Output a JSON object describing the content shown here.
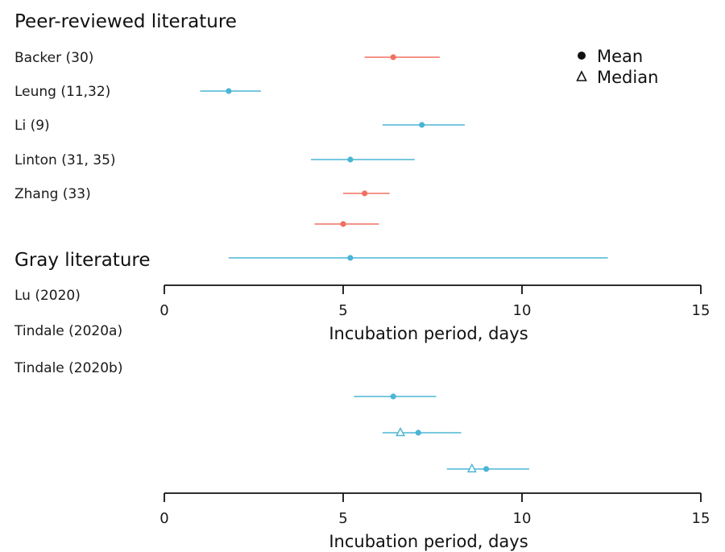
{
  "chart_data": {
    "type": "scatter",
    "subtype": "forest-plot",
    "colors": {
      "red": "#f07060",
      "blue": "#4bb5d4",
      "ink": "#111111"
    },
    "legend": {
      "placement": "top-right",
      "entries": [
        {
          "marker": "circle",
          "label": "Mean"
        },
        {
          "marker": "triangle",
          "label": "Median"
        }
      ]
    },
    "panels": [
      {
        "title": "Peer-reviewed literature",
        "xlabel": "Incubation period, days",
        "xlim": [
          0,
          15
        ],
        "xticks": [
          0,
          5,
          10,
          15
        ],
        "rows": [
          {
            "label": "Backer (30)",
            "color": "red",
            "mean": 6.4,
            "lo": 5.6,
            "hi": 7.7
          },
          {
            "label": "Leung (11,32)",
            "color": "blue",
            "mean": 1.8,
            "lo": 1.0,
            "hi": 2.7
          },
          {
            "label": "Li (9)",
            "color": "blue",
            "mean": 7.2,
            "lo": 6.1,
            "hi": 8.4
          },
          {
            "label": "Linton (31, 35)",
            "color": "blue",
            "mean": 5.2,
            "lo": 4.1,
            "hi": 7.0
          },
          {
            "label": "Zhang (33)",
            "color": "red",
            "mean": 5.6,
            "lo": 5.0,
            "hi": 6.3
          },
          {
            "label": "",
            "color": "red",
            "mean": 5.0,
            "lo": 4.2,
            "hi": 6.0
          },
          {
            "label": "",
            "color": "blue",
            "mean": 5.2,
            "lo": 1.8,
            "hi": 12.4
          }
        ]
      },
      {
        "title": "Gray literature",
        "xlabel": "Incubation period, days",
        "xlim": [
          0,
          15
        ],
        "xticks": [
          0,
          5,
          10,
          15
        ],
        "rows": [
          {
            "label": "Lu (2020)",
            "color": "blue"
          },
          {
            "label": "Tindale (2020a)",
            "color": "blue"
          },
          {
            "label": "Tindale (2020b)",
            "color": "blue"
          },
          {
            "label": "",
            "color": "blue",
            "mean": 6.4,
            "lo": 5.3,
            "hi": 7.6
          },
          {
            "label": "",
            "color": "blue",
            "mean": 7.1,
            "median": 6.6,
            "lo": 6.1,
            "hi": 8.3
          },
          {
            "label": "",
            "color": "blue",
            "mean": 9.0,
            "median": 8.6,
            "lo": 7.9,
            "hi": 10.2
          }
        ]
      }
    ]
  }
}
